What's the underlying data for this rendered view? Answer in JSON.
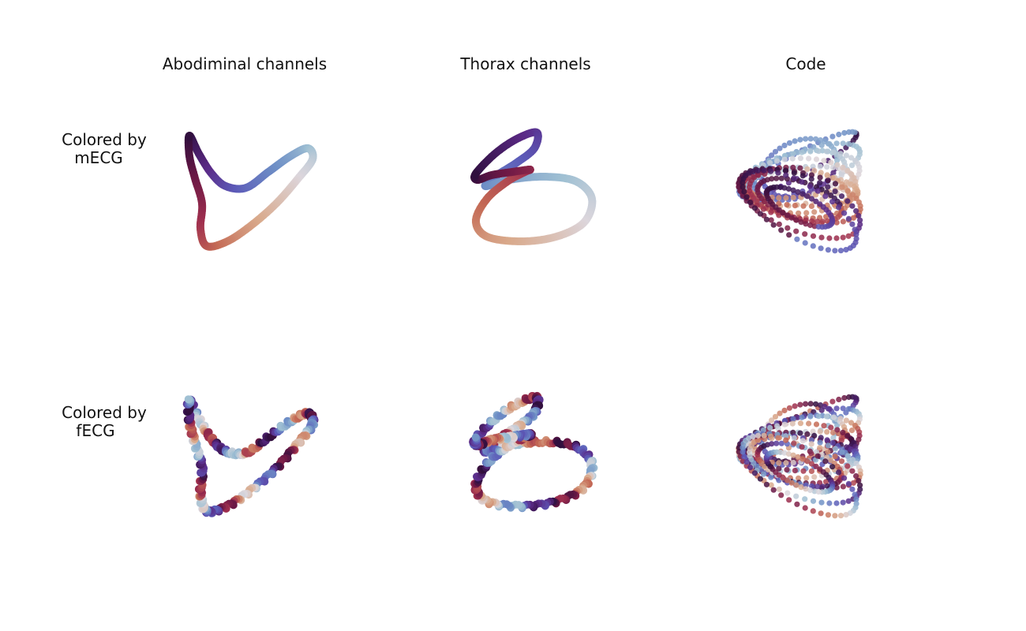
{
  "columns": [
    {
      "title": "Abodiminal channels"
    },
    {
      "title": "Thorax channels"
    },
    {
      "title": "Code"
    }
  ],
  "rows": [
    {
      "label_line1": "Colored by",
      "label_line2": "mECG"
    },
    {
      "label_line1": "Colored by",
      "label_line2": "fECG"
    }
  ],
  "colormap": [
    "#2f0f3e",
    "#5b2a86",
    "#5c5ab8",
    "#6e8fc6",
    "#9fc0d3",
    "#dcd6dc",
    "#d9a98b",
    "#c46a55",
    "#a0304f",
    "#6b1845",
    "#2f0f3e"
  ],
  "panels": [
    {
      "row": 0,
      "col": 0,
      "shape": "abdominal-loop",
      "coloring": "mECG"
    },
    {
      "row": 0,
      "col": 1,
      "shape": "thorax-loop",
      "coloring": "mECG"
    },
    {
      "row": 0,
      "col": 2,
      "shape": "code-ball",
      "coloring": "mECG"
    },
    {
      "row": 1,
      "col": 0,
      "shape": "abdominal-loop",
      "coloring": "fECG"
    },
    {
      "row": 1,
      "col": 1,
      "shape": "thorax-loop",
      "coloring": "fECG"
    },
    {
      "row": 1,
      "col": 2,
      "shape": "code-ball",
      "coloring": "fECG"
    }
  ]
}
